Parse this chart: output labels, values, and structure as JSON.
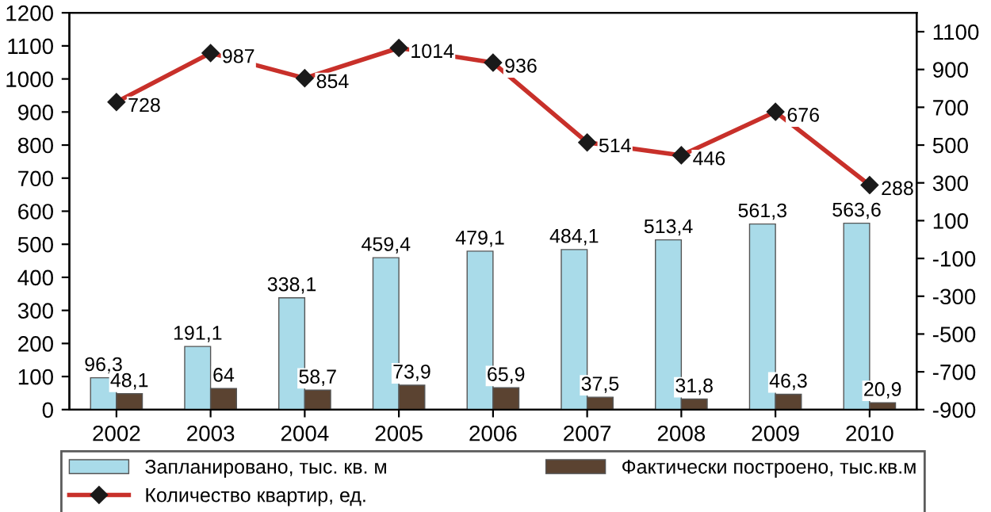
{
  "chart_data": {
    "type": "bar",
    "categories": [
      "2002",
      "2003",
      "2004",
      "2005",
      "2006",
      "2007",
      "2008",
      "2009",
      "2010"
    ],
    "series": [
      {
        "name": "Запланировано, тыс. кв. м",
        "color": "#a9dbe9",
        "values": [
          96.3,
          191.1,
          338.1,
          459.4,
          479.1,
          484.1,
          513.4,
          561.3,
          563.6
        ],
        "value_labels": [
          "96,3",
          "191,1",
          "338,1",
          "459,4",
          "479,1",
          "484,1",
          "513,4",
          "561,3",
          "563,6"
        ]
      },
      {
        "name": "Фактически построено, тыс.кв.м",
        "color": "#5b4331",
        "values": [
          48.1,
          64,
          58.7,
          73.9,
          65.9,
          37.5,
          31.8,
          46.3,
          20.9
        ],
        "value_labels": [
          "48,1",
          "64",
          "58,7",
          "73,9",
          "65,9",
          "37,5",
          "31,8",
          "46,3",
          "20,9"
        ]
      },
      {
        "name": "Количество квартир, ед.",
        "type": "line",
        "axis": "y2",
        "color": "#c8302a",
        "marker": "diamond",
        "values": [
          728,
          987,
          854,
          1014,
          936,
          514,
          446,
          676,
          288
        ],
        "value_labels": [
          "728",
          "987",
          "854",
          "1014",
          "936",
          "514",
          "446",
          "676",
          "288"
        ]
      }
    ],
    "ylim": [
      0,
      1200
    ],
    "yticks": [
      0,
      100,
      200,
      300,
      400,
      500,
      600,
      700,
      800,
      900,
      1000,
      1100,
      1200
    ],
    "y2lim": [
      -900,
      1200
    ],
    "y2ticks": [
      -900,
      -700,
      -500,
      -300,
      -100,
      100,
      300,
      500,
      700,
      900,
      1100
    ],
    "grid": false,
    "legend": "bottom"
  }
}
